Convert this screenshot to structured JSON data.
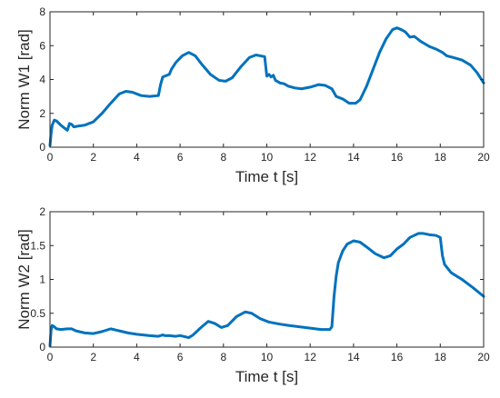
{
  "chart_data": [
    {
      "type": "line",
      "xlabel": "Time t [s]",
      "ylabel": "Norm W1 [rad]",
      "xlim": [
        0,
        20
      ],
      "ylim": [
        0,
        8
      ],
      "xticks": [
        0,
        2,
        4,
        6,
        8,
        10,
        12,
        14,
        16,
        18,
        20
      ],
      "yticks": [
        0,
        2,
        4,
        6,
        8
      ],
      "grid": false,
      "series": [
        {
          "color": "#0072bd",
          "x": [
            0,
            0.05,
            0.1,
            0.2,
            0.3,
            0.5,
            0.7,
            0.8,
            0.9,
            1.0,
            1.1,
            1.3,
            1.6,
            2.0,
            2.4,
            2.8,
            3.2,
            3.5,
            3.8,
            4.2,
            4.6,
            5.0,
            5.1,
            5.2,
            5.3,
            5.5,
            5.6,
            5.8,
            6.1,
            6.4,
            6.7,
            7.0,
            7.4,
            7.8,
            8.1,
            8.4,
            8.8,
            9.2,
            9.5,
            9.7,
            9.9,
            10.0,
            10.1,
            10.2,
            10.3,
            10.4,
            10.6,
            10.8,
            11.0,
            11.3,
            11.6,
            12.0,
            12.4,
            12.7,
            13.0,
            13.2,
            13.5,
            13.8,
            14.1,
            14.3,
            14.6,
            14.9,
            15.2,
            15.5,
            15.8,
            16.0,
            16.2,
            16.4,
            16.6,
            16.8,
            16.9,
            17.1,
            17.3,
            17.5,
            17.8,
            18.1,
            18.3,
            18.6,
            19.0,
            19.4,
            19.7,
            20.0
          ],
          "y": [
            0.1,
            0.8,
            1.3,
            1.6,
            1.55,
            1.3,
            1.1,
            1.0,
            1.4,
            1.35,
            1.2,
            1.25,
            1.3,
            1.5,
            2.0,
            2.6,
            3.15,
            3.3,
            3.25,
            3.05,
            3.0,
            3.05,
            3.7,
            4.15,
            4.2,
            4.3,
            4.6,
            5.0,
            5.4,
            5.6,
            5.4,
            4.9,
            4.3,
            3.95,
            3.9,
            4.1,
            4.75,
            5.3,
            5.45,
            5.4,
            5.35,
            4.2,
            4.3,
            4.15,
            4.25,
            3.95,
            3.8,
            3.75,
            3.6,
            3.5,
            3.45,
            3.55,
            3.7,
            3.65,
            3.45,
            3.0,
            2.85,
            2.6,
            2.6,
            2.8,
            3.6,
            4.6,
            5.6,
            6.4,
            6.95,
            7.05,
            6.95,
            6.8,
            6.5,
            6.55,
            6.45,
            6.25,
            6.1,
            5.95,
            5.8,
            5.6,
            5.4,
            5.3,
            5.15,
            4.85,
            4.4,
            3.8
          ]
        }
      ]
    },
    {
      "type": "line",
      "xlabel": "Time t [s]",
      "ylabel": "Norm W2 [rad]",
      "xlim": [
        0,
        20
      ],
      "ylim": [
        0,
        2
      ],
      "xticks": [
        0,
        2,
        4,
        6,
        8,
        10,
        12,
        14,
        16,
        18,
        20
      ],
      "yticks": [
        0,
        0.5,
        1,
        1.5,
        2
      ],
      "grid": false,
      "series": [
        {
          "color": "#0072bd",
          "x": [
            0,
            0.05,
            0.1,
            0.2,
            0.3,
            0.5,
            0.8,
            1.0,
            1.2,
            1.6,
            2.0,
            2.4,
            2.8,
            3.2,
            3.6,
            4.0,
            4.6,
            5.0,
            5.2,
            5.3,
            5.5,
            5.8,
            6.0,
            6.4,
            6.6,
            7.0,
            7.3,
            7.6,
            7.9,
            8.2,
            8.6,
            9.0,
            9.3,
            9.7,
            10.1,
            10.6,
            11.0,
            11.5,
            12.0,
            12.5,
            12.9,
            13.0,
            13.1,
            13.2,
            13.3,
            13.5,
            13.7,
            14.0,
            14.3,
            14.6,
            15.0,
            15.4,
            15.7,
            16.0,
            16.3,
            16.6,
            16.8,
            17.0,
            17.2,
            17.5,
            17.8,
            18.0,
            18.1,
            18.2,
            18.5,
            19.0,
            19.5,
            20.0
          ],
          "y": [
            0.02,
            0.25,
            0.32,
            0.3,
            0.27,
            0.26,
            0.27,
            0.27,
            0.24,
            0.21,
            0.2,
            0.23,
            0.27,
            0.24,
            0.21,
            0.19,
            0.17,
            0.16,
            0.18,
            0.17,
            0.17,
            0.16,
            0.17,
            0.14,
            0.18,
            0.3,
            0.38,
            0.35,
            0.29,
            0.32,
            0.45,
            0.52,
            0.5,
            0.42,
            0.37,
            0.34,
            0.32,
            0.3,
            0.28,
            0.26,
            0.26,
            0.3,
            0.75,
            1.05,
            1.25,
            1.42,
            1.52,
            1.57,
            1.55,
            1.48,
            1.38,
            1.32,
            1.35,
            1.45,
            1.52,
            1.62,
            1.65,
            1.68,
            1.68,
            1.66,
            1.65,
            1.62,
            1.35,
            1.22,
            1.1,
            1.0,
            0.88,
            0.75
          ]
        }
      ]
    }
  ]
}
